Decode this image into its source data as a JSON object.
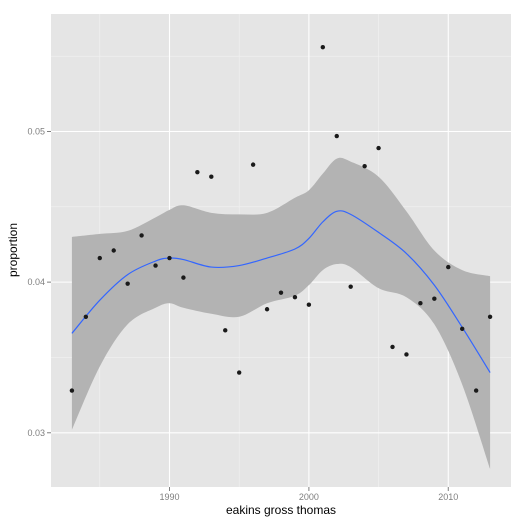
{
  "chart_data": {
    "type": "scatter",
    "title": "",
    "xlabel": "eakins gross thomas",
    "ylabel": "proportion",
    "xlim": [
      1981.5,
      2014.5
    ],
    "ylim": [
      0.0264,
      0.0578
    ],
    "x_ticks": [
      1990,
      2000,
      2010
    ],
    "x_tick_labels": [
      "1990",
      "2000",
      "2010"
    ],
    "y_ticks": [
      0.03,
      0.04,
      0.05
    ],
    "y_tick_labels": [
      "0.03",
      "0.04",
      "0.05"
    ],
    "grid": true,
    "background_color": "#e5e5e5",
    "grid_color": "#ffffff",
    "point_color": "#1a1a1a",
    "smooth_color": "#3366ff",
    "band_color": "#b3b3b3",
    "points": [
      {
        "x": 1983,
        "y": 0.0328
      },
      {
        "x": 1984,
        "y": 0.0377
      },
      {
        "x": 1985,
        "y": 0.0416
      },
      {
        "x": 1986,
        "y": 0.0421
      },
      {
        "x": 1987,
        "y": 0.0399
      },
      {
        "x": 1988,
        "y": 0.0431
      },
      {
        "x": 1989,
        "y": 0.0411
      },
      {
        "x": 1990,
        "y": 0.0416
      },
      {
        "x": 1991,
        "y": 0.0403
      },
      {
        "x": 1992,
        "y": 0.0473
      },
      {
        "x": 1993,
        "y": 0.047
      },
      {
        "x": 1994,
        "y": 0.0368
      },
      {
        "x": 1995,
        "y": 0.034
      },
      {
        "x": 1996,
        "y": 0.0478
      },
      {
        "x": 1997,
        "y": 0.0382
      },
      {
        "x": 1998,
        "y": 0.0393
      },
      {
        "x": 1999,
        "y": 0.039
      },
      {
        "x": 2000,
        "y": 0.0385
      },
      {
        "x": 2001,
        "y": 0.0556
      },
      {
        "x": 2002,
        "y": 0.0497
      },
      {
        "x": 2003,
        "y": 0.0397
      },
      {
        "x": 2004,
        "y": 0.0477
      },
      {
        "x": 2005,
        "y": 0.0489
      },
      {
        "x": 2006,
        "y": 0.0357
      },
      {
        "x": 2007,
        "y": 0.0352
      },
      {
        "x": 2008,
        "y": 0.0386
      },
      {
        "x": 2009,
        "y": 0.0389
      },
      {
        "x": 2010,
        "y": 0.041
      },
      {
        "x": 2011,
        "y": 0.0369
      },
      {
        "x": 2012,
        "y": 0.0328
      },
      {
        "x": 2013,
        "y": 0.0377
      }
    ],
    "smooth": {
      "x": [
        1983,
        1985,
        1987,
        1989,
        1990,
        1991,
        1993,
        1995,
        1997,
        1999,
        2000,
        2001,
        2002,
        2003,
        2005,
        2007,
        2009,
        2011,
        2013
      ],
      "y": [
        0.0366,
        0.0388,
        0.0405,
        0.0414,
        0.0416,
        0.0415,
        0.041,
        0.0411,
        0.0416,
        0.0422,
        0.0429,
        0.044,
        0.0447,
        0.0445,
        0.0433,
        0.0419,
        0.0398,
        0.037,
        0.034
      ],
      "upper": [
        0.043,
        0.0432,
        0.0434,
        0.0443,
        0.0448,
        0.0451,
        0.0446,
        0.0445,
        0.0446,
        0.0456,
        0.0461,
        0.0472,
        0.0482,
        0.048,
        0.047,
        0.0447,
        0.0421,
        0.0408,
        0.0404
      ],
      "lower": [
        0.0302,
        0.0344,
        0.0372,
        0.0383,
        0.0386,
        0.0383,
        0.0379,
        0.0377,
        0.0386,
        0.0391,
        0.0398,
        0.0408,
        0.0412,
        0.041,
        0.0396,
        0.039,
        0.0372,
        0.0332,
        0.0276
      ]
    }
  }
}
